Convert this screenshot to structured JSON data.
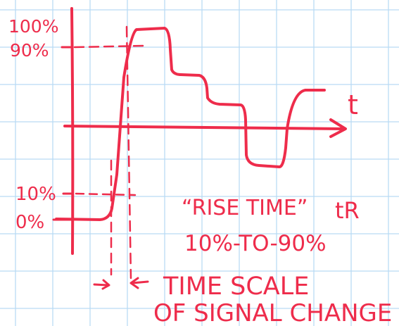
{
  "diagram": {
    "y_labels": {
      "p100": "100%",
      "p90": "90%",
      "p10": "10%",
      "p0": "0%"
    },
    "axis_label": "t",
    "rise_time_title": "“RISE TIME”",
    "rise_time_symbol": "tR",
    "rise_time_range": "10%-TO-90%",
    "time_scale_line1": "TIME SCALE",
    "time_scale_line2": "OF SIGNAL CHANGE"
  },
  "colors": {
    "ink": "#ee2c4b",
    "grid": "#b9dbf4",
    "paper": "#ffffff"
  }
}
